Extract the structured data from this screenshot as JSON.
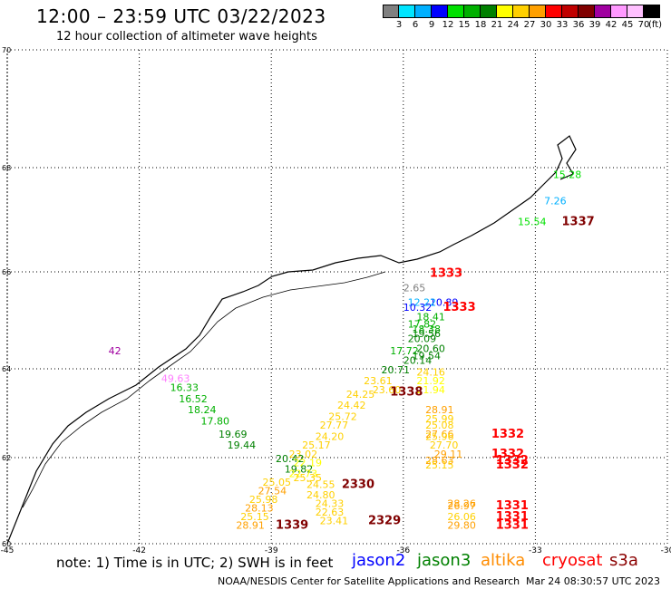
{
  "title": "12:00 – 23:59 UTC 03/22/2023",
  "subtitle": "12 hour collection of altimeter wave heights",
  "colorbar": {
    "unit": "(ft)",
    "ticks": [
      "3",
      "6",
      "9",
      "12",
      "15",
      "18",
      "21",
      "24",
      "27",
      "30",
      "33",
      "36",
      "39",
      "42",
      "45",
      "70"
    ],
    "colors": [
      "#808080",
      "#00e5ff",
      "#00b0ff",
      "#0000ff",
      "#00e000",
      "#00b000",
      "#008000",
      "#ffff00",
      "#ffd000",
      "#ffa000",
      "#ff0000",
      "#c00000",
      "#800000",
      "#a000a0",
      "#ff99ff",
      "#ffc0ff",
      "#000000"
    ]
  },
  "axes": {
    "x_ticks": [
      "-45",
      "-42",
      "-39",
      "-36",
      "-33",
      "-30"
    ],
    "y_ticks": [
      "60",
      "62",
      "64",
      "66",
      "68",
      "70"
    ],
    "lon_range": [
      -45,
      -30
    ],
    "lat_range": [
      60,
      70
    ]
  },
  "note": "note: 1) Time is in UTC; 2) SWH is in feet",
  "legend": [
    {
      "label": "jason2",
      "color": "#0000ff"
    },
    {
      "label": "jason3",
      "color": "#008000"
    },
    {
      "label": "altika",
      "color": "#ff8c00"
    },
    {
      "label": "cryosat",
      "color": "#ff0000"
    },
    {
      "label": "s3a",
      "color": "#8b0000"
    }
  ],
  "credit": "NOAA/NESDIS Center for Satellite Applications and Research",
  "timestamp": "Mar 24 08:30:57 UTC 2023",
  "chart_data": {
    "type": "scatter",
    "observations": [
      {
        "lon": -32.6,
        "lat": 67.8,
        "label": "15.28",
        "color": "#00e000"
      },
      {
        "lon": -32.8,
        "lat": 67.3,
        "label": "7.26",
        "color": "#00b0ff"
      },
      {
        "lon": -33.4,
        "lat": 66.9,
        "label": "15.54",
        "color": "#00e000"
      },
      {
        "lon": -32.4,
        "lat": 66.9,
        "label": "1337",
        "color": "#800000",
        "time": true
      },
      {
        "lon": -35.4,
        "lat": 65.9,
        "label": "1333",
        "color": "#ff0000",
        "time": true
      },
      {
        "lon": -36.0,
        "lat": 65.6,
        "label": "2.65",
        "color": "#808080"
      },
      {
        "lon": -35.4,
        "lat": 65.3,
        "label": "10.89",
        "color": "#0000ff"
      },
      {
        "lon": -35.9,
        "lat": 65.3,
        "label": "12.22",
        "color": "#00b0ff"
      },
      {
        "lon": -36.0,
        "lat": 65.2,
        "label": "10.32",
        "color": "#0000ff"
      },
      {
        "lon": -35.1,
        "lat": 65.2,
        "label": "1333",
        "color": "#ff0000",
        "time": true
      },
      {
        "lon": -35.7,
        "lat": 65.0,
        "label": "18.41",
        "color": "#00b000"
      },
      {
        "lon": -35.9,
        "lat": 64.85,
        "label": "17.82",
        "color": "#00b000"
      },
      {
        "lon": -35.8,
        "lat": 64.75,
        "label": "18.38",
        "color": "#00b000"
      },
      {
        "lon": -35.8,
        "lat": 64.65,
        "label": "19.56",
        "color": "#008000"
      },
      {
        "lon": -35.9,
        "lat": 64.55,
        "label": "20.09",
        "color": "#008000"
      },
      {
        "lon": -35.7,
        "lat": 64.35,
        "label": "20.60",
        "color": "#008000"
      },
      {
        "lon": -36.3,
        "lat": 64.3,
        "label": "17.72",
        "color": "#00b000"
      },
      {
        "lon": -35.8,
        "lat": 64.2,
        "label": "19.54",
        "color": "#008000"
      },
      {
        "lon": -36.0,
        "lat": 64.1,
        "label": "20.14",
        "color": "#008000"
      },
      {
        "lon": -36.5,
        "lat": 63.9,
        "label": "20.71",
        "color": "#008000"
      },
      {
        "lon": -35.7,
        "lat": 63.85,
        "label": "24.16",
        "color": "#ffd000"
      },
      {
        "lon": -36.9,
        "lat": 63.65,
        "label": "23.61",
        "color": "#ffd000"
      },
      {
        "lon": -35.7,
        "lat": 63.65,
        "label": "21.92",
        "color": "#ffff00"
      },
      {
        "lon": -36.7,
        "lat": 63.45,
        "label": "23.60",
        "color": "#ffd000"
      },
      {
        "lon": -35.7,
        "lat": 63.45,
        "label": "21.94",
        "color": "#ffff00"
      },
      {
        "lon": -36.3,
        "lat": 63.4,
        "label": "1338",
        "color": "#800000",
        "time": true
      },
      {
        "lon": -37.3,
        "lat": 63.35,
        "label": "24.25",
        "color": "#ffd000"
      },
      {
        "lon": -37.5,
        "lat": 63.1,
        "label": "24.42",
        "color": "#ffd000"
      },
      {
        "lon": -35.5,
        "lat": 63.0,
        "label": "28.91",
        "color": "#ffa000"
      },
      {
        "lon": -37.7,
        "lat": 62.85,
        "label": "25.72",
        "color": "#ffd000"
      },
      {
        "lon": -35.5,
        "lat": 62.8,
        "label": "25.99",
        "color": "#ffd000"
      },
      {
        "lon": -37.9,
        "lat": 62.65,
        "label": "27.77",
        "color": "#ffd000"
      },
      {
        "lon": -35.5,
        "lat": 62.65,
        "label": "25.08",
        "color": "#ffd000"
      },
      {
        "lon": -38.0,
        "lat": 62.4,
        "label": "24.20",
        "color": "#ffd000"
      },
      {
        "lon": -35.5,
        "lat": 62.45,
        "label": "27.66",
        "color": "#ffa000"
      },
      {
        "lon": -35.5,
        "lat": 62.4,
        "label": "25.96",
        "color": "#ffd000"
      },
      {
        "lon": -34.0,
        "lat": 62.45,
        "label": "1332",
        "color": "#ff0000",
        "time": true
      },
      {
        "lon": -38.3,
        "lat": 62.2,
        "label": "25.17",
        "color": "#ffd000"
      },
      {
        "lon": -35.4,
        "lat": 62.2,
        "label": "27.70",
        "color": "#ffd000"
      },
      {
        "lon": -34.0,
        "lat": 62.0,
        "label": "1332",
        "color": "#ff0000",
        "time": true
      },
      {
        "lon": -38.6,
        "lat": 62.0,
        "label": "23.02",
        "color": "#ffd000"
      },
      {
        "lon": -35.3,
        "lat": 62.0,
        "label": "29.11",
        "color": "#ffa000"
      },
      {
        "lon": -38.9,
        "lat": 61.9,
        "label": "20.42",
        "color": "#008000"
      },
      {
        "lon": -38.5,
        "lat": 61.8,
        "label": "22.19",
        "color": "#ffff00"
      },
      {
        "lon": -35.5,
        "lat": 61.85,
        "label": "28.63",
        "color": "#ffa000"
      },
      {
        "lon": -35.5,
        "lat": 61.75,
        "label": "25.15",
        "color": "#ffd000"
      },
      {
        "lon": -33.9,
        "lat": 61.85,
        "label": "1332",
        "color": "#ff0000",
        "time": true
      },
      {
        "lon": -33.9,
        "lat": 61.75,
        "label": "1332",
        "color": "#ff0000",
        "time": true
      },
      {
        "lon": -38.7,
        "lat": 61.65,
        "label": "19.82",
        "color": "#008000"
      },
      {
        "lon": -38.6,
        "lat": 61.55,
        "label": "22.73",
        "color": "#ffff00"
      },
      {
        "lon": -38.5,
        "lat": 61.45,
        "label": "25.35",
        "color": "#ffd000"
      },
      {
        "lon": -39.2,
        "lat": 61.35,
        "label": "25.05",
        "color": "#ffd000"
      },
      {
        "lon": -38.2,
        "lat": 61.3,
        "label": "24.55",
        "color": "#ffd000"
      },
      {
        "lon": -37.4,
        "lat": 61.3,
        "label": "2330",
        "color": "#800000",
        "time": true
      },
      {
        "lon": -39.3,
        "lat": 61.15,
        "label": "27.54",
        "color": "#ffa000"
      },
      {
        "lon": -38.2,
        "lat": 61.05,
        "label": "24.80",
        "color": "#ffd000"
      },
      {
        "lon": -39.5,
        "lat": 60.95,
        "label": "25.98",
        "color": "#ffd000"
      },
      {
        "lon": -38.0,
        "lat": 60.85,
        "label": "24.33",
        "color": "#ffd000"
      },
      {
        "lon": -35.0,
        "lat": 60.85,
        "label": "28.26",
        "color": "#ffa000"
      },
      {
        "lon": -35.0,
        "lat": 60.8,
        "label": "26.97",
        "color": "#ffa000"
      },
      {
        "lon": -33.9,
        "lat": 60.8,
        "label": "1331",
        "color": "#ff0000",
        "time": true
      },
      {
        "lon": -39.6,
        "lat": 60.75,
        "label": "28.13",
        "color": "#ffa000"
      },
      {
        "lon": -38.0,
        "lat": 60.65,
        "label": "22.63",
        "color": "#ffd000"
      },
      {
        "lon": -39.7,
        "lat": 60.55,
        "label": "25.15",
        "color": "#ffd000"
      },
      {
        "lon": -35.0,
        "lat": 60.55,
        "label": "26.06",
        "color": "#ffd000"
      },
      {
        "lon": -33.9,
        "lat": 60.55,
        "label": "1331",
        "color": "#ff0000",
        "time": true
      },
      {
        "lon": -37.9,
        "lat": 60.45,
        "label": "23.41",
        "color": "#ffd000"
      },
      {
        "lon": -36.8,
        "lat": 60.45,
        "label": "2329",
        "color": "#800000",
        "time": true
      },
      {
        "lon": -39.8,
        "lat": 60.35,
        "label": "28.91",
        "color": "#ffa000"
      },
      {
        "lon": -38.9,
        "lat": 60.35,
        "label": "1339",
        "color": "#800000",
        "time": true
      },
      {
        "lon": -35.0,
        "lat": 60.35,
        "label": "29.80",
        "color": "#ffa000"
      },
      {
        "lon": -33.9,
        "lat": 60.35,
        "label": "1331",
        "color": "#ff0000",
        "time": true
      },
      {
        "lon": -41.5,
        "lat": 63.7,
        "label": "49.63",
        "color": "#ff80ff"
      },
      {
        "lon": -41.3,
        "lat": 63.5,
        "label": "16.33",
        "color": "#00b000"
      },
      {
        "lon": -41.1,
        "lat": 63.25,
        "label": "16.52",
        "color": "#00b000"
      },
      {
        "lon": -40.9,
        "lat": 63.0,
        "label": "18.24",
        "color": "#00b000"
      },
      {
        "lon": -40.6,
        "lat": 62.75,
        "label": "17.80",
        "color": "#00b000"
      },
      {
        "lon": -40.2,
        "lat": 62.45,
        "label": "19.69",
        "color": "#008000"
      },
      {
        "lon": -40.0,
        "lat": 62.2,
        "label": "19.44",
        "color": "#008000"
      },
      {
        "lon": -42.7,
        "lat": 64.3,
        "label": "42",
        "color": "#a000a0"
      }
    ]
  }
}
